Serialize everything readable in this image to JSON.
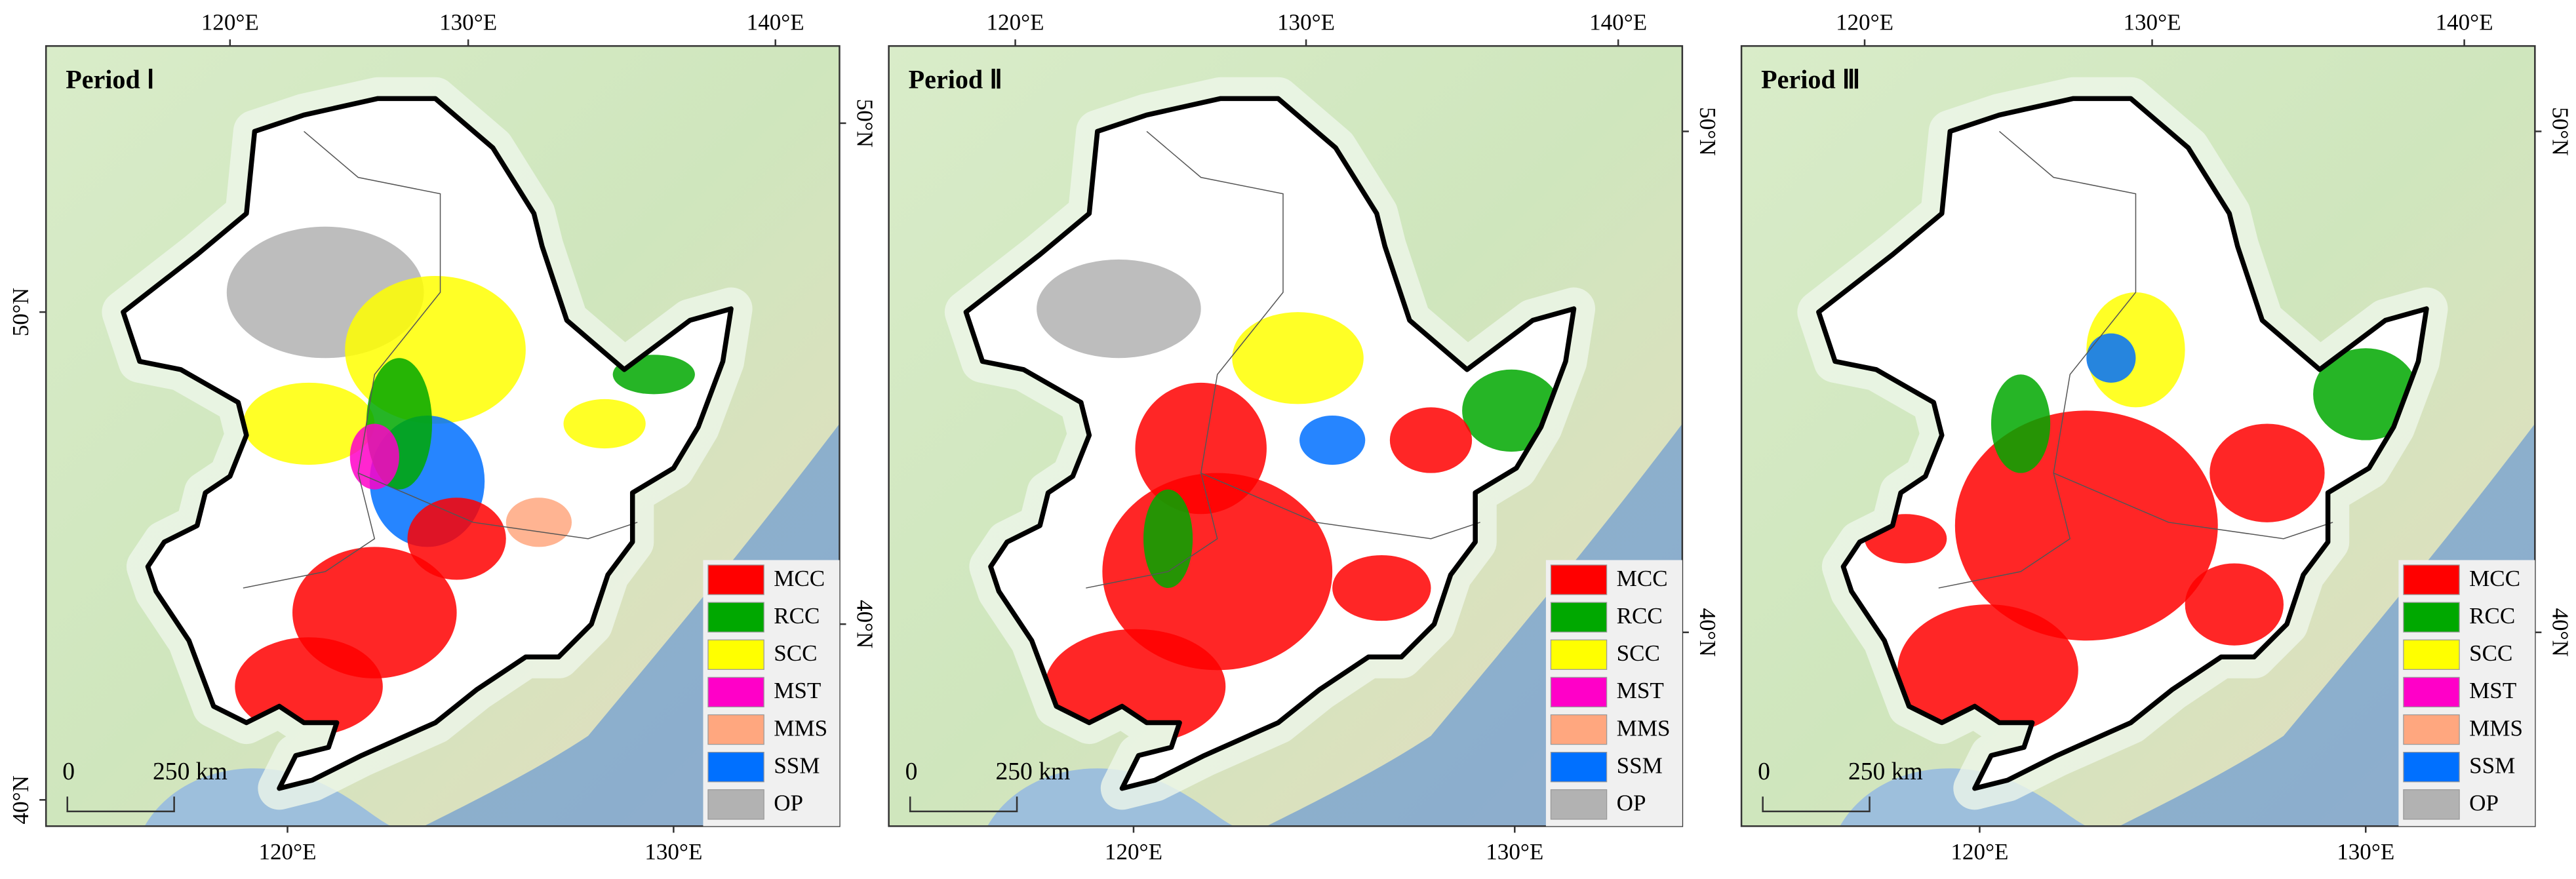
{
  "panels": [
    {
      "title": "Period Ⅰ",
      "top_ticks": [
        "120°E",
        "130°E",
        "140°E"
      ],
      "bottom_ticks": [
        "120°E",
        "130°E"
      ],
      "left_ticks": [
        "50°N",
        "40°N"
      ],
      "right_ticks": [
        "50°N",
        "40°N"
      ]
    },
    {
      "title": "Period Ⅱ",
      "top_ticks": [
        "120°E",
        "130°E",
        "140°E"
      ],
      "bottom_ticks": [
        "120°E",
        "130°E"
      ],
      "right_ticks": [
        "50°N",
        "40°N"
      ]
    },
    {
      "title": "Period Ⅲ",
      "top_ticks": [
        "120°E",
        "130°E",
        "140°E"
      ],
      "bottom_ticks": [
        "120°E",
        "130°E"
      ],
      "right_ticks": [
        "50°N",
        "40°N"
      ]
    }
  ],
  "legend": [
    {
      "label": "MCC",
      "color": "#ff0000"
    },
    {
      "label": "RCC",
      "color": "#00a800"
    },
    {
      "label": "SCC",
      "color": "#ffff00"
    },
    {
      "label": "MST",
      "color": "#ff00c8"
    },
    {
      "label": "MMS",
      "color": "#ffa77f"
    },
    {
      "label": "SSM",
      "color": "#0070ff"
    },
    {
      "label": "OP",
      "color": "#b2b2b2"
    }
  ],
  "scale_bar": {
    "start": "0",
    "end": "250 km"
  }
}
